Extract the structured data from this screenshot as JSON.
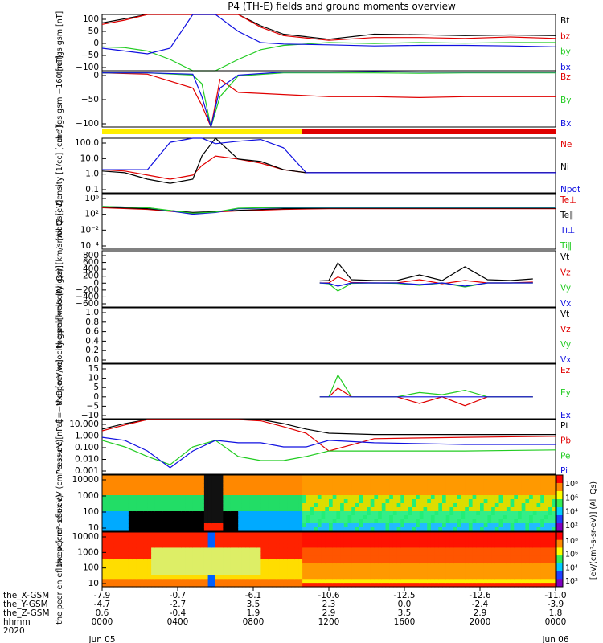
{
  "title": "P4 (TH-E) fields and ground moments overview",
  "colors": {
    "black": "#000000",
    "red": "#e00000",
    "green": "#22cc22",
    "blue": "#1010e0",
    "yellow": "#ffee00",
    "bar_red": "#e00000"
  },
  "ephemeris": {
    "row_labels": [
      "the_X-GSM",
      "the_Y-GSM",
      "the_Z-GSM",
      "hhmm",
      "2020"
    ],
    "ticks": [
      {
        "x": "-7.9",
        "y": "-4.7",
        "z": "0.6",
        "hhmm": "0000",
        "date": "Jun 05"
      },
      {
        "x": "-0.7",
        "y": "-2.7",
        "z": "-0.4",
        "hhmm": "0400",
        "date": ""
      },
      {
        "x": "-6.1",
        "y": "3.5",
        "z": "1.9",
        "hhmm": "0800",
        "date": ""
      },
      {
        "x": "-10.6",
        "y": "2.3",
        "z": "2.9",
        "hhmm": "1200",
        "date": ""
      },
      {
        "x": "-12.5",
        "y": "0.0",
        "z": "3.5",
        "hhmm": "1600",
        "date": ""
      },
      {
        "x": "-12.6",
        "y": "-2.4",
        "z": "2.9",
        "hhmm": "2000",
        "date": ""
      },
      {
        "x": "-11.0",
        "y": "-3.9",
        "z": "1.8",
        "hhmm": "0000",
        "date": "Jun 06"
      }
    ]
  },
  "colorbar": {
    "ticks": [
      "10⁸",
      "10⁶",
      "10⁴",
      "10²"
    ],
    "ticks_lower": [
      "10⁸",
      "10⁶",
      "10⁴",
      "10²"
    ],
    "label": "[eV/(cm²-s-sr-eV)] (All Qs)",
    "label_lower": "[eV/(cm²-s-sr-eV)]"
  },
  "chart_data": [
    {
      "type": "line",
      "ylabel": "the fgs gsm [nT]",
      "ylim": [
        -100,
        100
      ],
      "yticks": [
        "100",
        "50",
        "0",
        "−50",
        "−100"
      ],
      "legend": [
        {
          "name": "Bt",
          "color": "#000000"
        },
        {
          "name": "bz",
          "color": "#e00000"
        },
        {
          "name": "by",
          "color": "#22cc22"
        },
        {
          "name": "bx",
          "color": "#1010e0"
        }
      ],
      "x": [
        0,
        0.05,
        0.1,
        0.15,
        0.2,
        0.25,
        0.3,
        0.35,
        0.4,
        0.5,
        0.6,
        0.7,
        0.8,
        0.9,
        1.0
      ],
      "series": [
        {
          "name": "Bt",
          "values": [
            70,
            85,
            100,
            100,
            100,
            100,
            100,
            60,
            30,
            12,
            30,
            28,
            25,
            27,
            25
          ]
        },
        {
          "name": "bz",
          "values": [
            65,
            80,
            100,
            100,
            100,
            100,
            100,
            55,
            25,
            8,
            18,
            18,
            15,
            20,
            15
          ]
        },
        {
          "name": "by",
          "values": [
            -15,
            -18,
            -30,
            -60,
            -100,
            -100,
            -60,
            -25,
            -10,
            0,
            -3,
            0,
            -2,
            0,
            0
          ]
        },
        {
          "name": "bx",
          "values": [
            -20,
            -30,
            -40,
            -20,
            100,
            100,
            40,
            0,
            -5,
            -8,
            -12,
            -10,
            -10,
            -12,
            -15
          ]
        }
      ]
    },
    {
      "type": "line",
      "ylabel": "the fgs gsm −160 [nT]",
      "ylim": [
        -130,
        0
      ],
      "yticks": [
        "0",
        "−50",
        "−100"
      ],
      "legend": [
        {
          "name": "Bz",
          "color": "#e00000"
        },
        {
          "name": "By",
          "color": "#22cc22"
        },
        {
          "name": "Bx",
          "color": "#1010e0"
        }
      ],
      "x": [
        0,
        0.1,
        0.2,
        0.22,
        0.24,
        0.26,
        0.3,
        0.4,
        0.5,
        0.6,
        0.7,
        0.8,
        0.9,
        1.0
      ],
      "series": [
        {
          "name": "Bz",
          "values": [
            -5,
            -8,
            -40,
            -80,
            -130,
            -20,
            -50,
            -55,
            -60,
            -60,
            -62,
            -60,
            -60,
            -60
          ]
        },
        {
          "name": "By",
          "values": [
            -5,
            -5,
            -10,
            -30,
            -130,
            -60,
            -12,
            -5,
            -5,
            -5,
            -6,
            -5,
            -5,
            -5
          ]
        },
        {
          "name": "Bx",
          "values": [
            -5,
            -5,
            -8,
            -60,
            -130,
            -40,
            -10,
            -3,
            -3,
            -2,
            -3,
            -3,
            -3,
            -3
          ]
        }
      ]
    },
    {
      "type": "line",
      "ylabel": "Density [1/cc] [cm⁻³]",
      "ylim": [
        0.01,
        100
      ],
      "scale": "log",
      "yticks": [
        "100.0",
        "10.0",
        "1.0",
        "0.1"
      ],
      "legend": [
        {
          "name": "Ne",
          "color": "#e00000"
        },
        {
          "name": "Ni",
          "color": "#000000"
        },
        {
          "name": "Npot",
          "color": "#1010e0"
        }
      ],
      "x": [
        0,
        0.05,
        0.1,
        0.15,
        0.2,
        0.22,
        0.25,
        0.3,
        0.35,
        0.4,
        0.45,
        0.5,
        0.6,
        0.8,
        1.0
      ],
      "series": [
        {
          "name": "Ne",
          "values": [
            0.5,
            0.4,
            0.2,
            0.1,
            0.2,
            1.0,
            5,
            3,
            1.5,
            0.5,
            0.3,
            0.3,
            0.3,
            0.3,
            0.3
          ]
        },
        {
          "name": "Ni",
          "values": [
            0.4,
            0.3,
            0.1,
            0.05,
            0.1,
            5,
            100,
            3,
            2,
            0.5,
            0.3,
            0.3,
            0.3,
            0.3,
            0.3
          ]
        },
        {
          "name": "Npot",
          "values": [
            0.5,
            0.5,
            0.5,
            50,
            100,
            100,
            40,
            60,
            80,
            20,
            0.3,
            0.3,
            0.3,
            0.3,
            0.3
          ]
        }
      ]
    },
    {
      "type": "line",
      "ylabel": "moqt3 [eV]",
      "ylim": [
        0.0001,
        1000000
      ],
      "scale": "log",
      "yticks": [
        "10⁶",
        "10²",
        "10⁻²",
        "10⁻⁴"
      ],
      "legend": [
        {
          "name": "Te⊥",
          "color": "#e00000"
        },
        {
          "name": "Te∥",
          "color": "#000000"
        },
        {
          "name": "Ti⊥",
          "color": "#1010e0"
        },
        {
          "name": "Ti∥",
          "color": "#22cc22"
        }
      ],
      "x": [
        0,
        0.1,
        0.2,
        0.25,
        0.3,
        0.4,
        0.5,
        0.6,
        0.8,
        1.0
      ],
      "series": [
        {
          "name": "Te⊥",
          "values": [
            3000,
            1500,
            300,
            500,
            800,
            1500,
            2000,
            2000,
            2000,
            2000
          ]
        },
        {
          "name": "Te∥",
          "values": [
            4000,
            2000,
            400,
            600,
            1000,
            2000,
            2500,
            2500,
            2500,
            2500
          ]
        },
        {
          "name": "Ti⊥",
          "values": [
            5000,
            3000,
            200,
            400,
            2000,
            3000,
            3000,
            3000,
            3000,
            3000
          ]
        },
        {
          "name": "Ti∥",
          "values": [
            5000,
            3000,
            300,
            500,
            2500,
            3500,
            3500,
            3500,
            3500,
            3500
          ]
        }
      ]
    },
    {
      "type": "line",
      "ylabel": "the peir velocity gsm [km/s (All Qs)]",
      "ylim": [
        -600,
        800
      ],
      "yticks": [
        "800",
        "600",
        "400",
        "200",
        "0",
        "−200",
        "−400",
        "−600"
      ],
      "legend": [
        {
          "name": "Vt",
          "color": "#000000"
        },
        {
          "name": "Vz",
          "color": "#e00000"
        },
        {
          "name": "Vy",
          "color": "#22cc22"
        },
        {
          "name": "Vx",
          "color": "#1010e0"
        }
      ],
      "x": [
        0.48,
        0.5,
        0.52,
        0.55,
        0.6,
        0.65,
        0.7,
        0.75,
        0.8,
        0.85,
        0.9,
        0.95
      ],
      "series": [
        {
          "name": "Vt",
          "values": [
            50,
            60,
            500,
            80,
            60,
            60,
            200,
            60,
            400,
            80,
            60,
            100
          ]
        },
        {
          "name": "Vz",
          "values": [
            0,
            0,
            150,
            10,
            0,
            0,
            80,
            -20,
            60,
            0,
            0,
            20
          ]
        },
        {
          "name": "Vy",
          "values": [
            0,
            -20,
            -200,
            -10,
            0,
            -10,
            -60,
            0,
            -100,
            0,
            0,
            0
          ]
        },
        {
          "name": "Vx",
          "values": [
            0,
            -10,
            -80,
            0,
            0,
            0,
            -40,
            0,
            -80,
            0,
            0,
            0
          ]
        }
      ]
    },
    {
      "type": "line",
      "ylabel": "the peer velocity gsm [km/s (All Qs)]",
      "ylim": [
        0,
        1
      ],
      "yticks": [
        "1.0",
        "0.8",
        "0.6",
        "0.4",
        "0.2",
        "0.0"
      ],
      "legend": [
        {
          "name": "Vt",
          "color": "#000000"
        },
        {
          "name": "Vz",
          "color": "#e00000"
        },
        {
          "name": "Vy",
          "color": "#22cc22"
        },
        {
          "name": "Vx",
          "color": "#1010e0"
        }
      ],
      "x": [],
      "series": []
    },
    {
      "type": "line",
      "ylabel": "E=−VxB [mV/m]",
      "ylim": [
        -10,
        15
      ],
      "yticks": [
        "15",
        "10",
        "5",
        "0",
        "−5",
        "−10"
      ],
      "legend": [
        {
          "name": "Ez",
          "color": "#e00000"
        },
        {
          "name": "Ey",
          "color": "#22cc22"
        },
        {
          "name": "Ex",
          "color": "#1010e0"
        }
      ],
      "x": [
        0.48,
        0.5,
        0.52,
        0.55,
        0.6,
        0.65,
        0.7,
        0.75,
        0.8,
        0.85,
        0.9,
        0.95
      ],
      "series": [
        {
          "name": "Ez",
          "values": [
            0,
            0,
            4,
            0,
            0,
            0,
            -3,
            0,
            -4,
            0,
            0,
            0
          ]
        },
        {
          "name": "Ey",
          "values": [
            0,
            0,
            10,
            0,
            0,
            0,
            2,
            1,
            3,
            0,
            0,
            0
          ]
        },
        {
          "name": "Ex",
          "values": [
            0,
            0,
            0,
            0,
            0,
            0,
            0,
            0,
            0,
            0,
            0,
            0
          ]
        }
      ]
    },
    {
      "type": "line",
      "ylabel": "Pressure [nPa]",
      "ylim": [
        0.001,
        10
      ],
      "scale": "log",
      "yticks": [
        "10.000",
        "1.000",
        "0.100",
        "0.010",
        "0.001"
      ],
      "legend": [
        {
          "name": "Pt",
          "color": "#000000"
        },
        {
          "name": "Pb",
          "color": "#e00000"
        },
        {
          "name": "Pe",
          "color": "#22cc22"
        },
        {
          "name": "Pi",
          "color": "#1010e0"
        }
      ],
      "x": [
        0,
        0.05,
        0.1,
        0.15,
        0.2,
        0.25,
        0.3,
        0.35,
        0.4,
        0.45,
        0.5,
        0.6,
        0.8,
        1.0
      ],
      "series": [
        {
          "name": "Pt",
          "values": [
            2,
            5,
            10,
            10,
            10,
            10,
            10,
            10,
            5,
            2,
            1,
            0.8,
            0.8,
            0.8
          ]
        },
        {
          "name": "Pb",
          "values": [
            1.5,
            4,
            10,
            10,
            10,
            10,
            10,
            8,
            3,
            1,
            0.05,
            0.4,
            0.5,
            0.6
          ]
        },
        {
          "name": "Pe",
          "values": [
            0.3,
            0.1,
            0.02,
            0.005,
            0.1,
            0.3,
            0.02,
            0.01,
            0.01,
            0.02,
            0.05,
            0.05,
            0.05,
            0.06
          ]
        },
        {
          "name": "Pi",
          "values": [
            0.5,
            0.3,
            0.05,
            0.003,
            0.05,
            0.3,
            0.2,
            0.2,
            0.1,
            0.1,
            0.3,
            0.2,
            0.15,
            0.15
          ]
        }
      ]
    },
    {
      "type": "heatmap",
      "ylabel": "the peir en eflux eV (cm²-s-sr-eV)",
      "scale": "log",
      "yticks": [
        "10000",
        "1000",
        "100",
        "10"
      ]
    },
    {
      "type": "heatmap",
      "ylabel": "the peer en eflux eV (cm²-s-sr-eV)",
      "scale": "log",
      "yticks": [
        "10000",
        "1000",
        "100",
        "10"
      ]
    }
  ]
}
